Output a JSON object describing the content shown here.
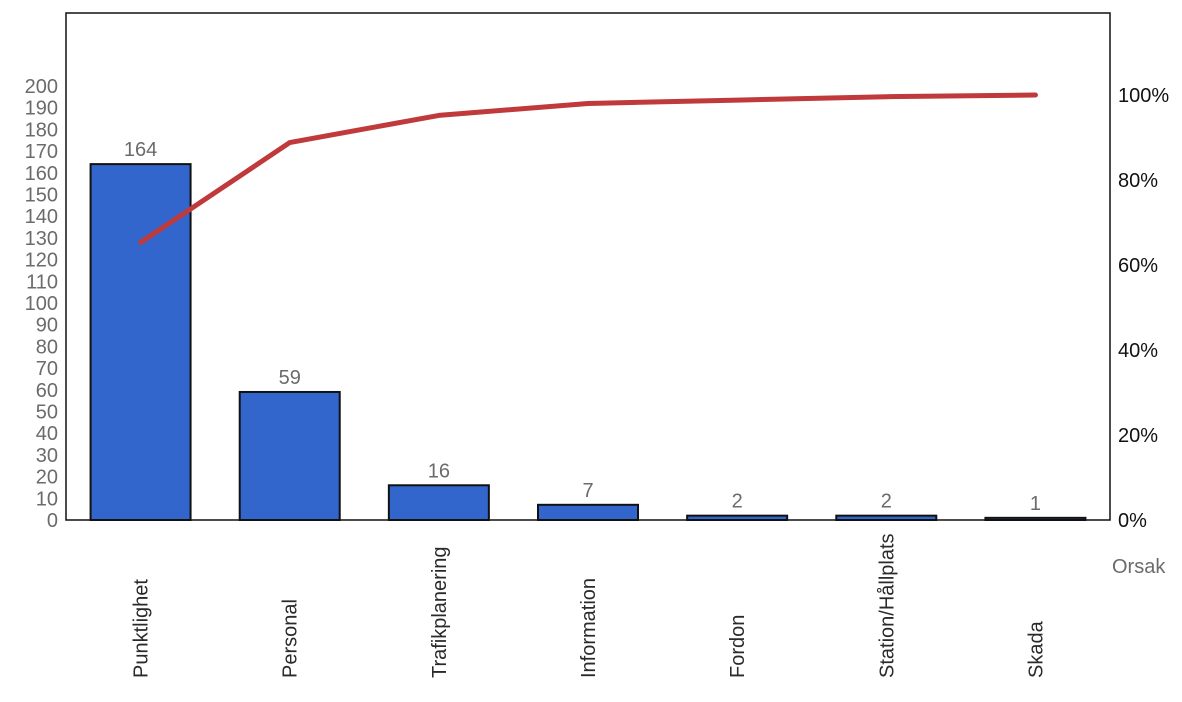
{
  "chart_data": {
    "type": "bar",
    "categories": [
      "Punktlighet",
      "Personal",
      "Trafikplanering",
      "Information",
      "Fordon",
      "Station/Hållplats",
      "Skada"
    ],
    "values": [
      164,
      59,
      16,
      7,
      2,
      2,
      1
    ],
    "cumulative_percent": [
      65.3,
      88.8,
      95.2,
      98.0,
      98.8,
      99.6,
      100
    ],
    "xlabel": "Orsak",
    "ylabel": "",
    "ylim": [
      0,
      200
    ],
    "y_ticks": [
      0,
      10,
      20,
      30,
      40,
      50,
      60,
      70,
      80,
      90,
      100,
      110,
      120,
      130,
      140,
      150,
      160,
      170,
      180,
      190,
      200
    ],
    "y2lim": [
      0,
      100
    ],
    "y2_ticks": [
      "0%",
      "20%",
      "40%",
      "60%",
      "80%",
      "100%"
    ],
    "series": [
      {
        "values": [
          164,
          59,
          16,
          7,
          2,
          2,
          1
        ]
      },
      {
        "values": [
          65.3,
          88.8,
          95.2,
          98.0,
          98.8,
          99.6,
          100
        ]
      }
    ],
    "colors": {
      "bar": "#3366cc",
      "bar_edge": "#111111",
      "line": "#c0393b"
    },
    "grid": false
  }
}
